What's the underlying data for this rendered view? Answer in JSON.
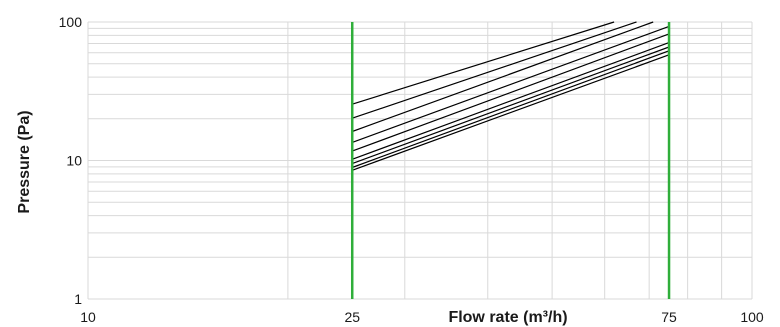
{
  "chart_data": {
    "type": "line",
    "x_scale": "log",
    "y_scale": "log",
    "xlim": [
      10,
      100
    ],
    "ylim": [
      1,
      100
    ],
    "grid": true,
    "xlabel": "Flow rate (m³/h)",
    "ylabel": "Pressure (Pa)",
    "x_ticks": [
      "10",
      "25",
      "75",
      "100"
    ],
    "y_ticks": [
      "1",
      "10",
      "100"
    ],
    "markers": [
      {
        "x": 25,
        "color": "#2fae3a"
      },
      {
        "x": 75,
        "color": "#2fae3a"
      }
    ],
    "line_color": "#000000",
    "series": [
      {
        "points": [
          [
            25,
            25.5
          ],
          [
            62,
            100
          ]
        ]
      },
      {
        "points": [
          [
            25,
            20.2
          ],
          [
            67,
            100
          ]
        ]
      },
      {
        "points": [
          [
            25,
            16.2
          ],
          [
            71,
            100
          ]
        ]
      },
      {
        "points": [
          [
            25,
            13.5
          ],
          [
            75,
            93
          ]
        ]
      },
      {
        "points": [
          [
            25,
            11.7
          ],
          [
            75,
            82
          ]
        ]
      },
      {
        "points": [
          [
            25,
            10.2
          ],
          [
            75,
            71
          ]
        ]
      },
      {
        "points": [
          [
            25,
            9.5
          ],
          [
            75,
            66
          ]
        ]
      },
      {
        "points": [
          [
            25,
            8.9
          ],
          [
            75,
            62
          ]
        ]
      },
      {
        "points": [
          [
            25,
            8.5
          ],
          [
            75,
            58
          ]
        ]
      }
    ]
  }
}
